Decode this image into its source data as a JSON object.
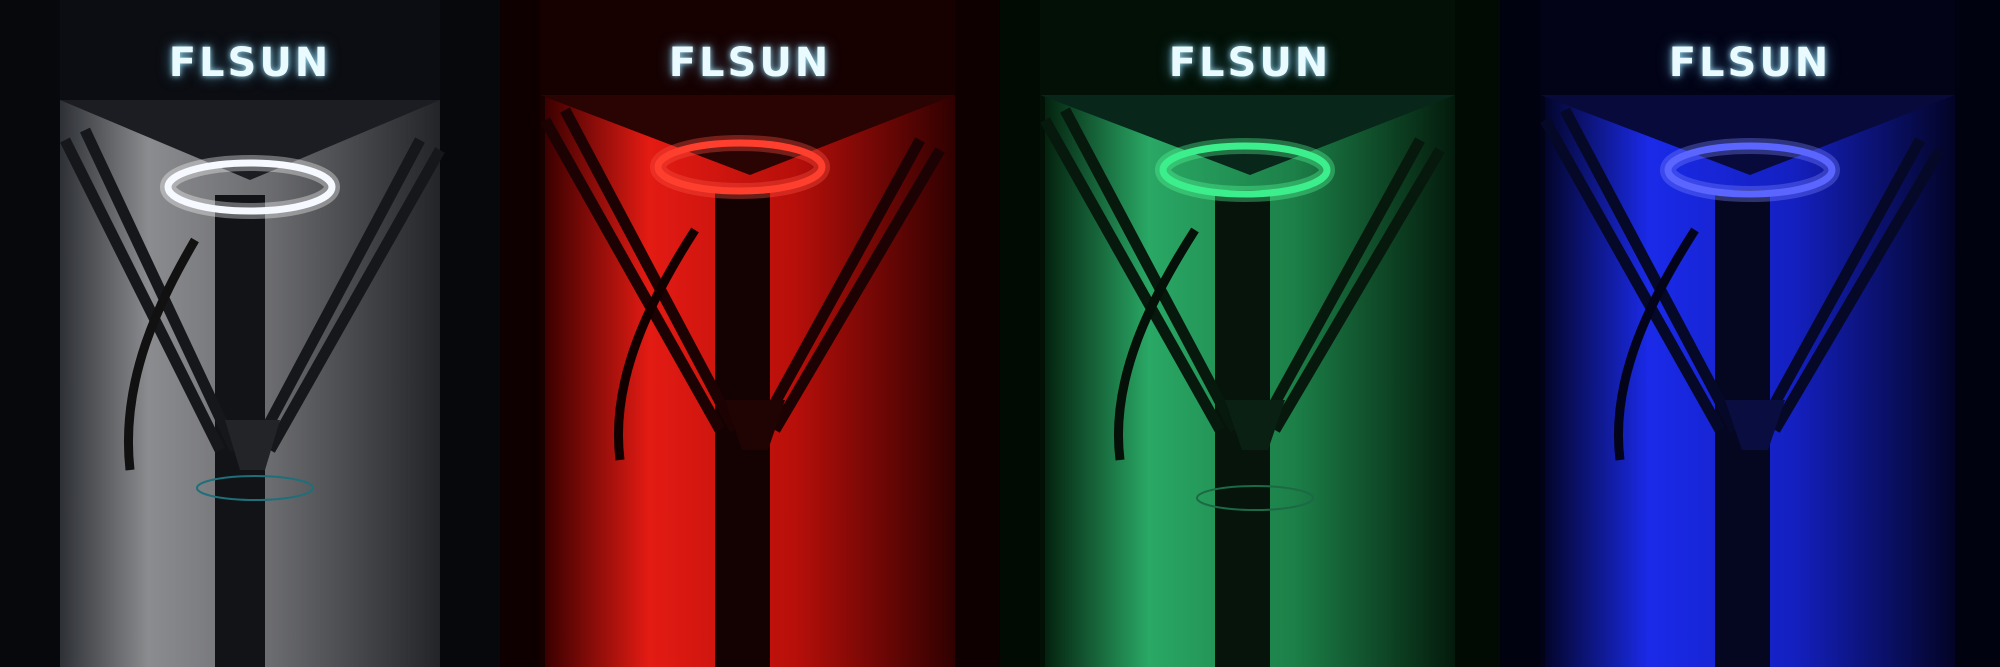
{
  "panels": [
    {
      "brand": "FLSUN",
      "light_color": "white",
      "accent": "#e8f2ff",
      "bg": "#0d0f14",
      "wall": "#3a3d42"
    },
    {
      "brand": "FLSUN",
      "light_color": "red",
      "accent": "#ff2a1e",
      "bg": "#1a0000",
      "wall": "#c4110b"
    },
    {
      "brand": "FLSUN",
      "light_color": "green",
      "accent": "#25d47a",
      "bg": "#021408",
      "wall": "#1c8a4e"
    },
    {
      "brand": "FLSUN",
      "light_color": "blue",
      "accent": "#3a46ff",
      "bg": "#02031a",
      "wall": "#1424d6"
    }
  ]
}
